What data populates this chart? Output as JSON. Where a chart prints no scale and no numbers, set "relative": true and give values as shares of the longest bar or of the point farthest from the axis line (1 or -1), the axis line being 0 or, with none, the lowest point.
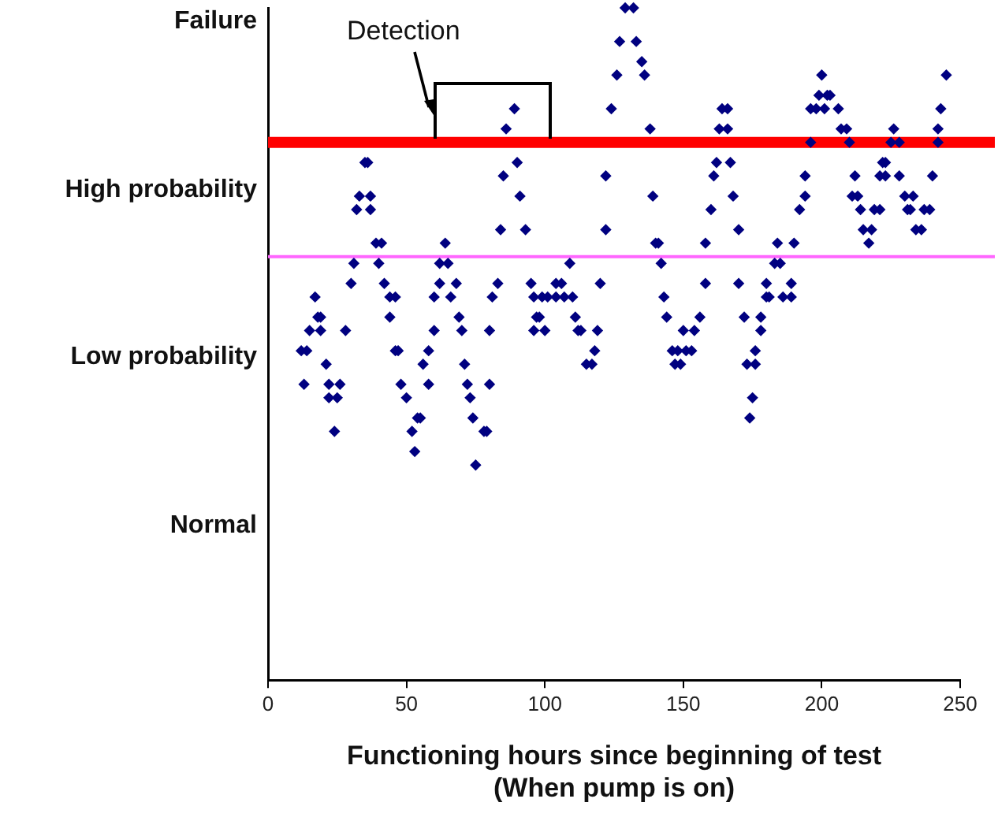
{
  "chart_data": {
    "type": "scatter",
    "xlabel": "Functioning hours since beginning of test\n(When pump is on)",
    "xlim": [
      0,
      250
    ],
    "xticks": [
      0,
      50,
      100,
      150,
      200,
      250
    ],
    "relative": true,
    "marker": "diamond",
    "legend": false,
    "grid": false,
    "ref_lines": [
      {
        "axis": "y",
        "value": 0.8,
        "color": "#ff0000"
      },
      {
        "axis": "y",
        "value": 0.63,
        "color": "#ff66ff"
      }
    ],
    "annotations": [
      "Failure",
      "High probability",
      "Low probability",
      "Normal",
      "Detection"
    ],
    "series": [
      {
        "color": "#000080",
        "x": [
          12,
          14,
          13,
          17,
          18,
          19,
          15,
          19,
          21,
          22,
          26,
          22,
          25,
          24,
          28,
          30,
          31,
          32,
          37,
          33,
          37,
          35,
          36,
          39,
          41,
          40,
          42,
          44,
          46,
          44,
          46,
          47,
          48,
          50,
          54,
          55,
          52,
          53,
          56,
          58,
          58,
          60,
          60,
          62,
          62,
          64,
          65,
          66,
          68,
          69,
          70,
          71,
          72,
          73,
          74,
          78,
          79,
          75,
          80,
          80,
          81,
          83,
          84,
          85,
          86,
          89,
          90,
          91,
          93,
          95,
          96,
          97,
          96,
          99,
          101,
          98,
          100,
          104,
          106,
          104,
          107,
          109,
          110,
          111,
          112,
          113,
          115,
          117,
          118,
          119,
          120,
          122,
          122,
          124,
          126,
          127,
          129,
          132,
          133,
          136,
          135,
          138,
          139,
          140,
          141,
          142,
          143,
          144,
          146,
          148,
          151,
          153,
          147,
          149,
          150,
          154,
          156,
          158,
          158,
          160,
          161,
          162,
          163,
          166,
          164,
          166,
          167,
          168,
          170,
          170,
          172,
          173,
          176,
          175,
          174,
          176,
          178,
          178,
          180,
          181,
          180,
          183,
          185,
          184,
          186,
          189,
          189,
          190,
          192,
          194,
          194,
          196,
          196,
          198,
          199,
          200,
          202,
          203,
          201,
          206,
          207,
          209,
          210,
          212,
          211,
          213,
          214,
          215,
          218,
          217,
          219,
          221,
          221,
          223,
          222,
          223,
          225,
          226,
          228,
          228,
          230,
          233,
          231,
          232,
          234,
          236,
          237,
          239,
          240,
          242,
          242,
          243,
          245
        ],
        "values": [
          0.49,
          0.49,
          0.44,
          0.57,
          0.54,
          0.54,
          0.52,
          0.52,
          0.47,
          0.44,
          0.44,
          0.42,
          0.42,
          0.37,
          0.52,
          0.59,
          0.62,
          0.7,
          0.7,
          0.72,
          0.72,
          0.77,
          0.77,
          0.65,
          0.65,
          0.62,
          0.59,
          0.57,
          0.57,
          0.54,
          0.49,
          0.49,
          0.44,
          0.42,
          0.39,
          0.39,
          0.37,
          0.34,
          0.47,
          0.44,
          0.49,
          0.52,
          0.57,
          0.59,
          0.62,
          0.65,
          0.62,
          0.57,
          0.59,
          0.54,
          0.52,
          0.47,
          0.44,
          0.42,
          0.39,
          0.37,
          0.37,
          0.32,
          0.44,
          0.52,
          0.57,
          0.59,
          0.67,
          0.75,
          0.82,
          0.85,
          0.77,
          0.72,
          0.67,
          0.59,
          0.57,
          0.54,
          0.52,
          0.57,
          0.57,
          0.54,
          0.52,
          0.59,
          0.59,
          0.57,
          0.57,
          0.62,
          0.57,
          0.54,
          0.52,
          0.52,
          0.47,
          0.47,
          0.49,
          0.52,
          0.59,
          0.67,
          0.75,
          0.85,
          0.9,
          0.95,
          1,
          1,
          0.95,
          0.9,
          0.92,
          0.82,
          0.72,
          0.65,
          0.65,
          0.62,
          0.57,
          0.54,
          0.49,
          0.49,
          0.49,
          0.49,
          0.47,
          0.47,
          0.52,
          0.52,
          0.54,
          0.59,
          0.65,
          0.7,
          0.75,
          0.77,
          0.82,
          0.82,
          0.85,
          0.85,
          0.77,
          0.72,
          0.67,
          0.59,
          0.54,
          0.47,
          0.47,
          0.42,
          0.39,
          0.49,
          0.52,
          0.54,
          0.57,
          0.57,
          0.59,
          0.62,
          0.62,
          0.65,
          0.57,
          0.57,
          0.59,
          0.65,
          0.7,
          0.72,
          0.75,
          0.8,
          0.85,
          0.85,
          0.87,
          0.9,
          0.87,
          0.87,
          0.85,
          0.85,
          0.82,
          0.82,
          0.8,
          0.75,
          0.72,
          0.72,
          0.7,
          0.67,
          0.67,
          0.65,
          0.7,
          0.7,
          0.75,
          0.75,
          0.77,
          0.77,
          0.8,
          0.82,
          0.8,
          0.75,
          0.72,
          0.72,
          0.7,
          0.7,
          0.67,
          0.67,
          0.7,
          0.7,
          0.75,
          0.8,
          0.82,
          0.85,
          0.9
        ]
      }
    ]
  }
}
